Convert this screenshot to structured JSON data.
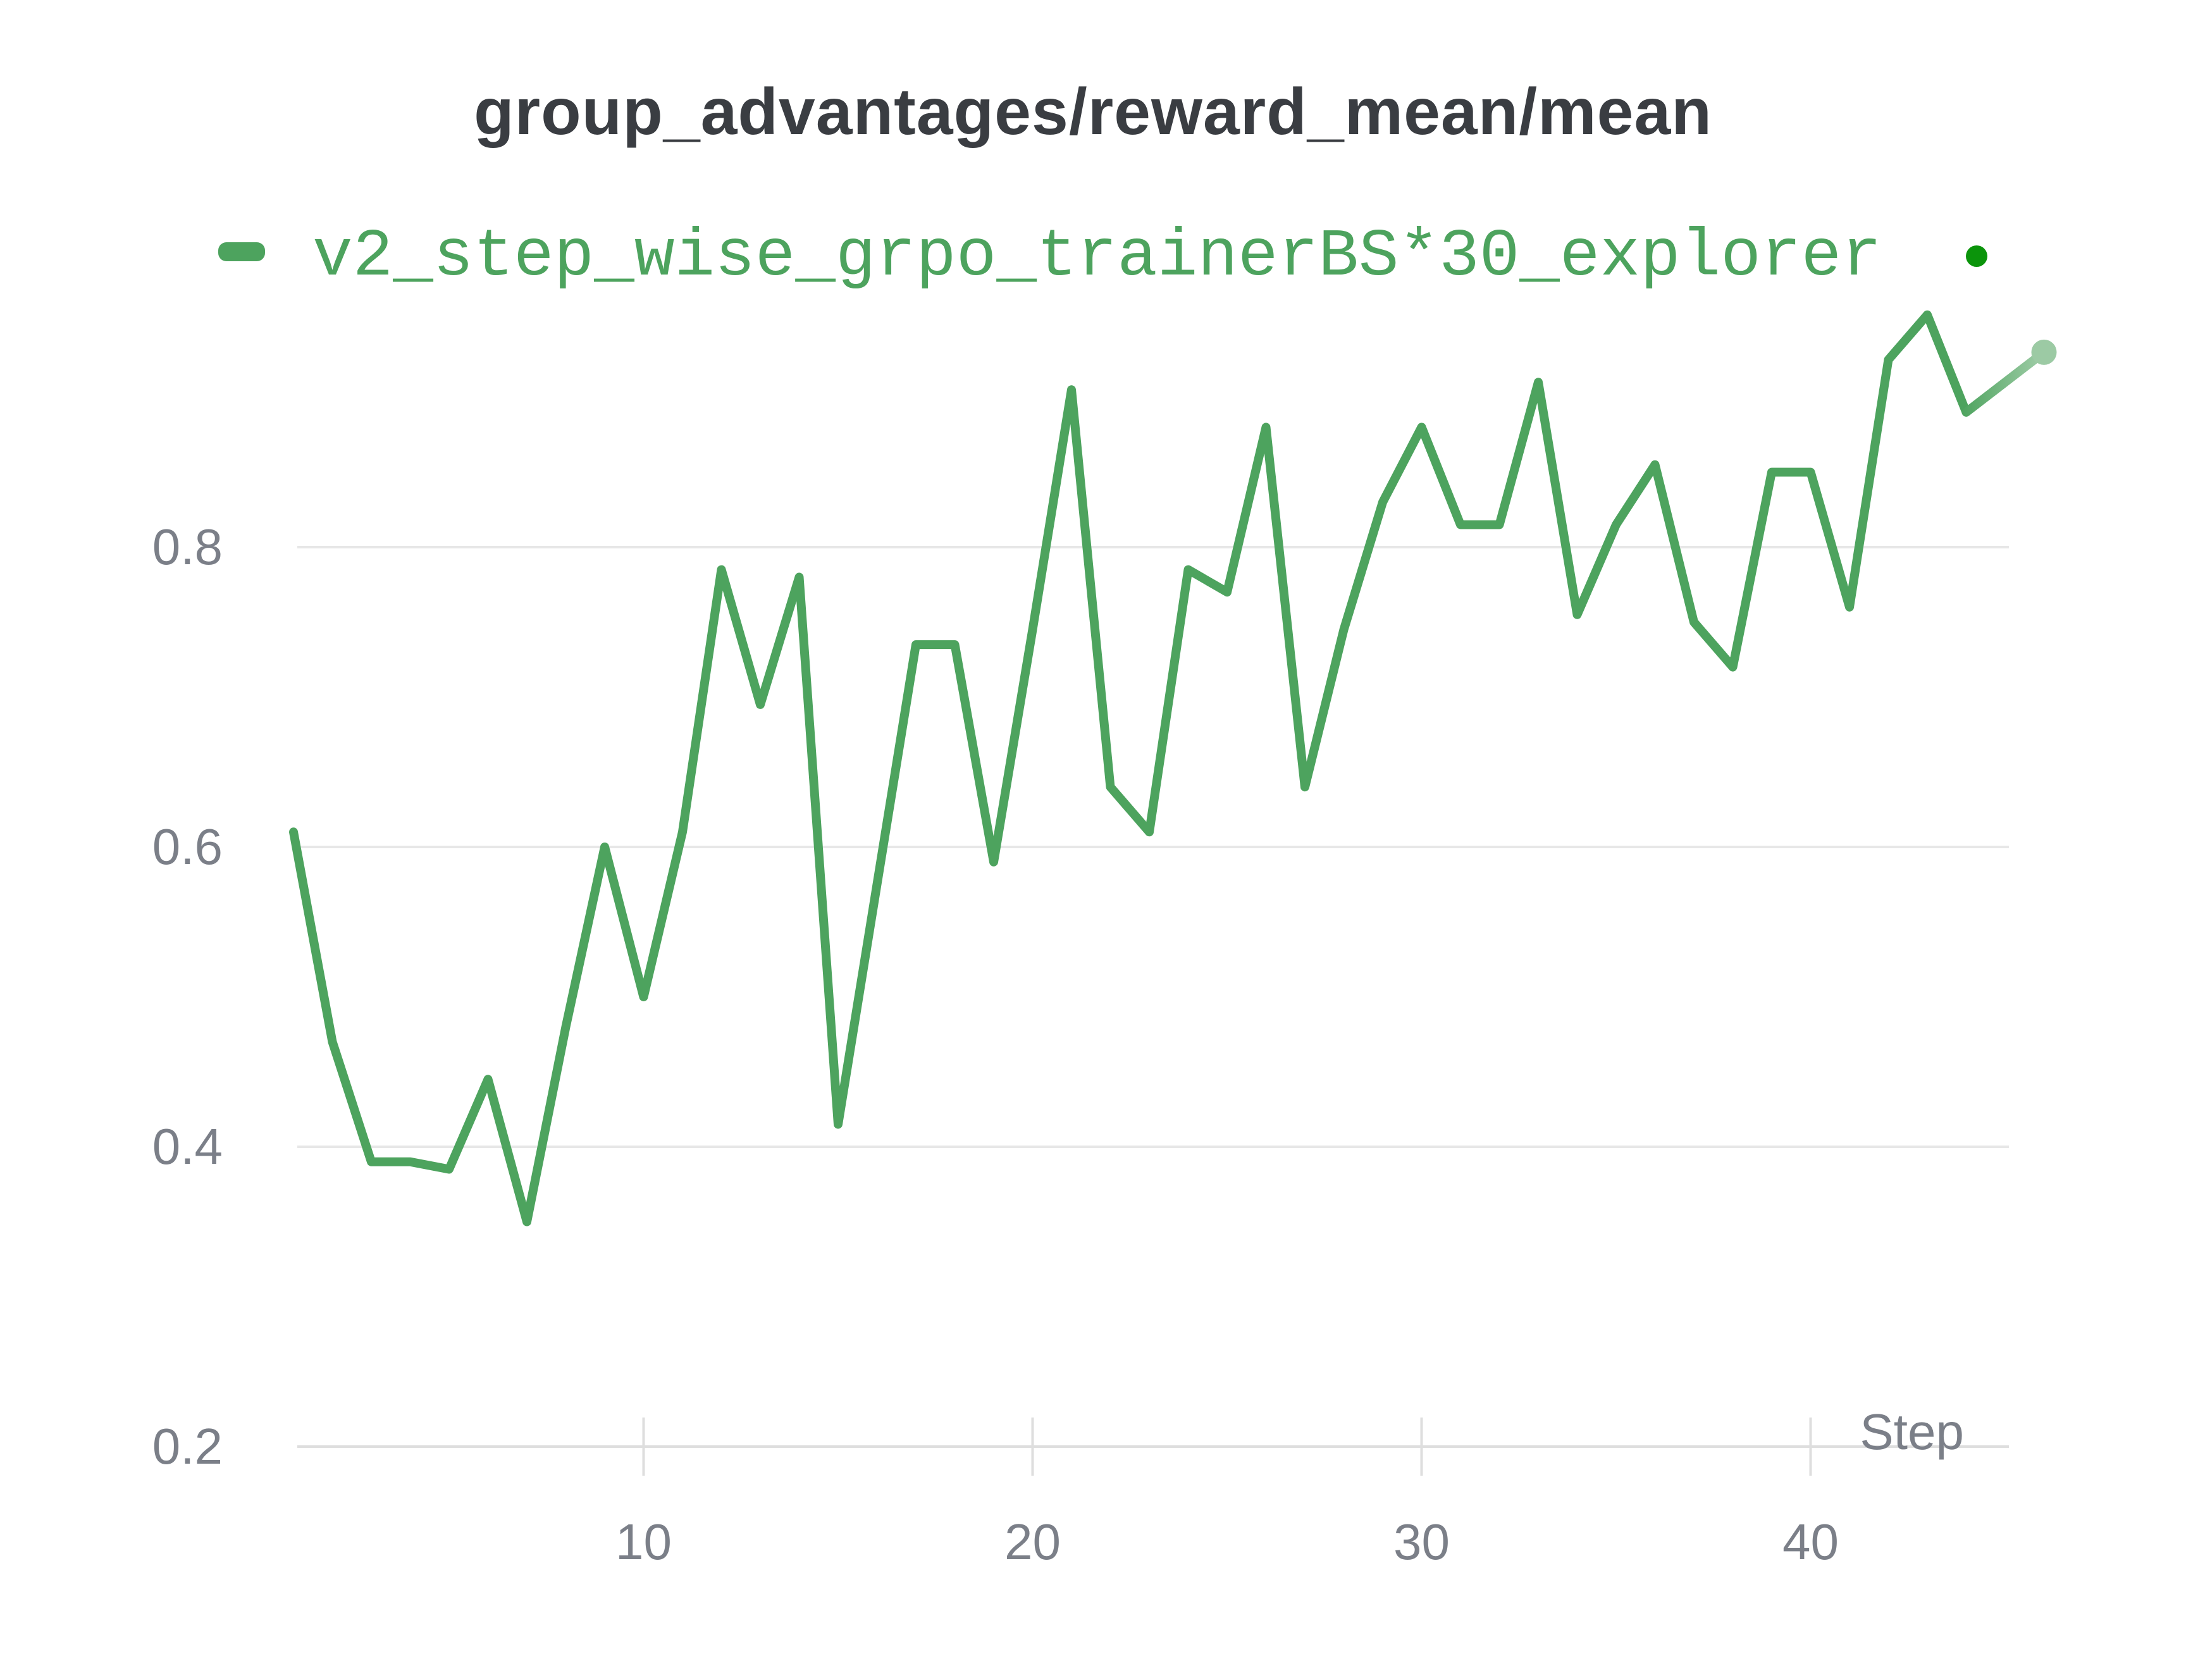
{
  "title": "group_advantages/reward_mean/mean",
  "legend": {
    "label": "v2_step_wise_grpo_trainerBS*30_explorer",
    "series_color": "#4da35e",
    "status_dot_color": "#0b940b"
  },
  "axes": {
    "xlabel": "Step",
    "x_tick_labels": [
      "10",
      "20",
      "30",
      "40"
    ],
    "y_tick_labels": [
      "0.2",
      "0.4",
      "0.6",
      "0.8"
    ]
  },
  "chart_data": {
    "type": "line",
    "title": "group_advantages/reward_mean/mean",
    "xlabel": "Step",
    "grid": true,
    "legend_position": "top-left",
    "x_ticks": [
      10,
      20,
      30,
      40
    ],
    "y_ticks": [
      0.2,
      0.4,
      0.6,
      0.8
    ],
    "xlim": [
      1,
      46
    ],
    "ylim": [
      0.2,
      0.985
    ],
    "colors": {
      "line": "#4da35e",
      "line_end_fade": "#a6d0ad",
      "end_dot": "#9ccaa4",
      "gridline": "#e7e7e7",
      "axis_line": "#dedede",
      "title_text": "#3a3d42",
      "tick_text": "#7b7f88"
    },
    "series": [
      {
        "name": "v2_step_wise_grpo_trainerBS*30_explorer",
        "color": "#4da35e",
        "steps": [
          1,
          2,
          3,
          4,
          5,
          6,
          7,
          8,
          9,
          10,
          11,
          12,
          13,
          14,
          15,
          16,
          17,
          18,
          19,
          20,
          21,
          22,
          23,
          24,
          25,
          26,
          27,
          28,
          29,
          30,
          31,
          32,
          33,
          34,
          35,
          36,
          37,
          38,
          39,
          40,
          41,
          42,
          43,
          44,
          45,
          46
        ],
        "values": [
          0.61,
          0.47,
          0.39,
          0.39,
          0.385,
          0.445,
          0.35,
          0.48,
          0.6,
          0.5,
          0.61,
          0.785,
          0.695,
          0.78,
          0.415,
          0.575,
          0.735,
          0.735,
          0.59,
          0.745,
          0.905,
          0.64,
          0.61,
          0.785,
          0.77,
          0.88,
          0.64,
          0.745,
          0.83,
          0.88,
          0.815,
          0.815,
          0.91,
          0.755,
          0.815,
          0.855,
          0.75,
          0.72,
          0.85,
          0.85,
          0.76,
          0.925,
          0.955,
          0.89,
          0.91,
          0.93
        ]
      }
    ]
  }
}
